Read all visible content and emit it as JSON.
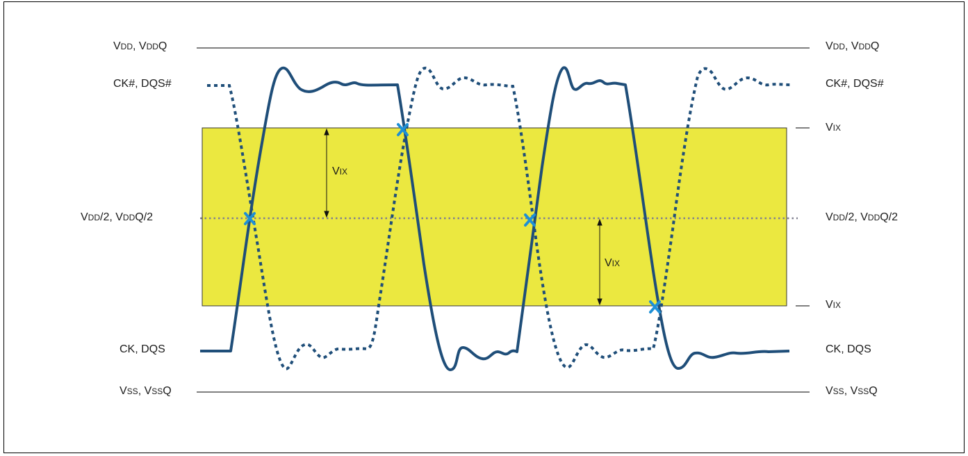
{
  "labels": {
    "vdd": {
      "main": "V",
      "sub": "DD",
      "mid": ", V",
      "sub2": "DD",
      "end": "Q"
    },
    "ck_n": "CK#, DQS#",
    "vix": {
      "main": "V",
      "sub": "IX"
    },
    "vdd_half": {
      "main": "V",
      "sub": "DD",
      "mid": "/2, V",
      "sub2": "DD",
      "end": "Q/2"
    },
    "ck": "CK, DQS",
    "vss": {
      "main": "V",
      "sub": "SS",
      "mid": ", V",
      "sub2": "SS",
      "end": "Q"
    }
  },
  "colors": {
    "band": "#ebe840",
    "signal": "#1f4e79",
    "cross": "#1e90d6",
    "ref_line": "#333333",
    "dotted_ref": "#7f7f8f"
  },
  "icons": {
    "crossing_marker": "x-mark-icon"
  }
}
